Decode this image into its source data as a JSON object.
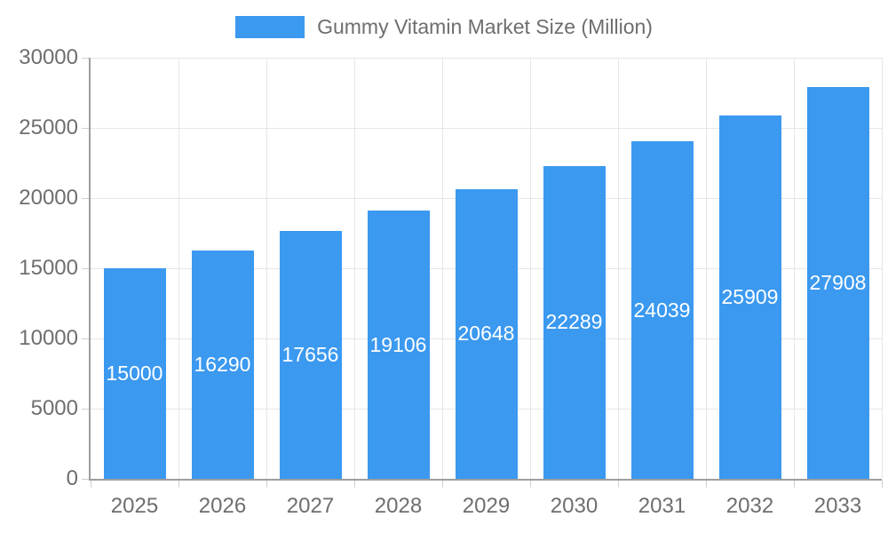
{
  "legend": {
    "label": "Gummy Vitamin Market Size (Million)"
  },
  "chart_data": {
    "type": "bar",
    "title": "Gummy Vitamin Market Size (Million)",
    "categories": [
      "2025",
      "2026",
      "2027",
      "2028",
      "2029",
      "2030",
      "2031",
      "2032",
      "2033"
    ],
    "values": [
      15000,
      16290,
      17656,
      19106,
      20648,
      22289,
      24039,
      25909,
      27908
    ],
    "xlabel": "",
    "ylabel": "",
    "ylim": [
      0,
      30000
    ],
    "yticks": [
      0,
      5000,
      10000,
      15000,
      20000,
      25000,
      30000
    ],
    "grid": true,
    "legend_position": "top",
    "value_labels": "inside-center",
    "colors": {
      "bar": "#3b99f0",
      "value_label": "#ffffff",
      "axis_text": "#6e6e6e",
      "gridline": "#e6e6e6",
      "tick": "#d0d0d0",
      "axis_line": "#9e9e9e",
      "background": "#ffffff"
    }
  }
}
